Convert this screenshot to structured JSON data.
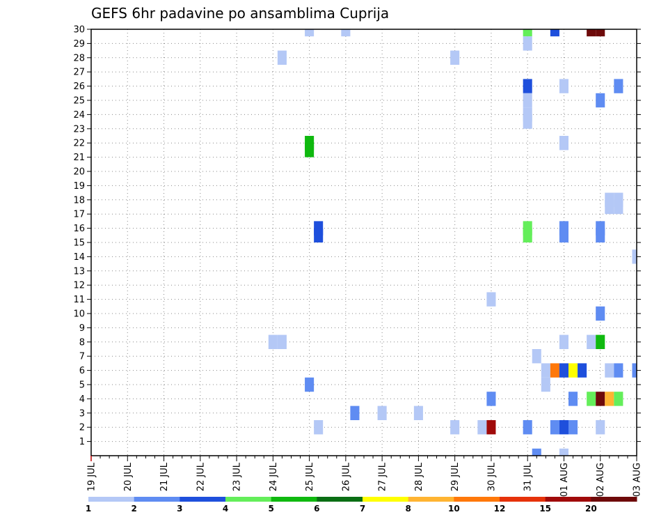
{
  "chart_data": {
    "type": "heatmap",
    "title": "GEFS 6hr padavine po ansamblima Cuprija",
    "xlabel": "",
    "ylabel": "",
    "x_ticks": [
      "19 JUL",
      "20 JUL",
      "21 JUL",
      "22 JUL",
      "23 JUL",
      "24 JUL",
      "25 JUL",
      "26 JUL",
      "27 JUL",
      "28 JUL",
      "29 JUL",
      "30 JUL",
      "31 JUL",
      "01 AUG",
      "02 AUG",
      "03 AUG"
    ],
    "y_ticks": [
      1,
      2,
      3,
      4,
      5,
      6,
      7,
      8,
      9,
      10,
      11,
      12,
      13,
      14,
      15,
      16,
      17,
      18,
      19,
      20,
      21,
      22,
      23,
      24,
      25,
      26,
      27,
      28,
      29,
      30
    ],
    "xlim": [
      0,
      15
    ],
    "ylim": [
      0,
      30
    ],
    "grid": true,
    "colorbar": {
      "labels": [
        "1",
        "2",
        "3",
        "4",
        "5",
        "6",
        "7",
        "8",
        "10",
        "12",
        "15",
        "20"
      ],
      "colors": [
        "#b4c8f6",
        "#5f8cf2",
        "#1e4fdc",
        "#64ee5a",
        "#0fb90f",
        "#0a6e14",
        "#ffff00",
        "#ffb432",
        "#ff780a",
        "#e6320a",
        "#a00a0a",
        "#6e0a0a"
      ]
    },
    "cells": [
      {
        "x": 6,
        "y": 30,
        "c": 0
      },
      {
        "x": 7,
        "y": 30,
        "c": 0
      },
      {
        "x": 12,
        "y": 30,
        "c": 3
      },
      {
        "x": 12.75,
        "y": 30,
        "c": 2
      },
      {
        "x": 13.75,
        "y": 30,
        "c": 11
      },
      {
        "x": 14,
        "y": 30,
        "c": 11
      },
      {
        "x": 12,
        "y": 29,
        "c": 0
      },
      {
        "x": 5.25,
        "y": 28,
        "c": 0
      },
      {
        "x": 10,
        "y": 28,
        "c": 0
      },
      {
        "x": 12,
        "y": 26,
        "c": 2
      },
      {
        "x": 13,
        "y": 26,
        "c": 0
      },
      {
        "x": 14.5,
        "y": 26,
        "c": 1
      },
      {
        "x": 12,
        "y": 25,
        "c": 0
      },
      {
        "x": 14,
        "y": 25,
        "c": 1
      },
      {
        "x": 12,
        "y": 24,
        "c": 0
      },
      {
        "x": 12,
        "y": 23.5,
        "c": 0
      },
      {
        "x": 6,
        "y": 22,
        "c": 4
      },
      {
        "x": 6,
        "y": 21.5,
        "c": 4
      },
      {
        "x": 13,
        "y": 22,
        "c": 0
      },
      {
        "x": 14.25,
        "y": 18,
        "c": 0
      },
      {
        "x": 14.5,
        "y": 18,
        "c": 0
      },
      {
        "x": 14.25,
        "y": 17.5,
        "c": 0
      },
      {
        "x": 14.5,
        "y": 17.5,
        "c": 0
      },
      {
        "x": 6.25,
        "y": 16,
        "c": 2
      },
      {
        "x": 6.25,
        "y": 15.5,
        "c": 2
      },
      {
        "x": 12,
        "y": 16,
        "c": 3
      },
      {
        "x": 12,
        "y": 15.5,
        "c": 3
      },
      {
        "x": 13,
        "y": 16,
        "c": 1
      },
      {
        "x": 13,
        "y": 15.5,
        "c": 1
      },
      {
        "x": 14,
        "y": 16,
        "c": 1
      },
      {
        "x": 14,
        "y": 15.5,
        "c": 1
      },
      {
        "x": 15,
        "y": 14,
        "c": 0
      },
      {
        "x": 11,
        "y": 11,
        "c": 0
      },
      {
        "x": 14,
        "y": 10,
        "c": 1
      },
      {
        "x": 5,
        "y": 8,
        "c": 0
      },
      {
        "x": 5.25,
        "y": 8,
        "c": 0
      },
      {
        "x": 13,
        "y": 8,
        "c": 0
      },
      {
        "x": 13.75,
        "y": 8,
        "c": 0
      },
      {
        "x": 14,
        "y": 8,
        "c": 4
      },
      {
        "x": 12.25,
        "y": 7,
        "c": 0
      },
      {
        "x": 12.5,
        "y": 6,
        "c": 0
      },
      {
        "x": 12.75,
        "y": 6,
        "c": 8
      },
      {
        "x": 13,
        "y": 6,
        "c": 2
      },
      {
        "x": 13.25,
        "y": 6,
        "c": 6
      },
      {
        "x": 13.5,
        "y": 6,
        "c": 2
      },
      {
        "x": 14.25,
        "y": 6,
        "c": 0
      },
      {
        "x": 14.5,
        "y": 6,
        "c": 1
      },
      {
        "x": 15,
        "y": 6,
        "c": 1
      },
      {
        "x": 6,
        "y": 5,
        "c": 1
      },
      {
        "x": 12.5,
        "y": 5,
        "c": 0
      },
      {
        "x": 11,
        "y": 4,
        "c": 1
      },
      {
        "x": 13.25,
        "y": 4,
        "c": 1
      },
      {
        "x": 13.75,
        "y": 4,
        "c": 3
      },
      {
        "x": 14,
        "y": 4,
        "c": 11
      },
      {
        "x": 14.25,
        "y": 4,
        "c": 7
      },
      {
        "x": 14.5,
        "y": 4,
        "c": 3
      },
      {
        "x": 7.25,
        "y": 3,
        "c": 1
      },
      {
        "x": 8,
        "y": 3,
        "c": 0
      },
      {
        "x": 9,
        "y": 3,
        "c": 0
      },
      {
        "x": 6.25,
        "y": 2,
        "c": 0
      },
      {
        "x": 10,
        "y": 2,
        "c": 0
      },
      {
        "x": 10.75,
        "y": 2,
        "c": 0
      },
      {
        "x": 11,
        "y": 2,
        "c": 10
      },
      {
        "x": 12,
        "y": 2,
        "c": 1
      },
      {
        "x": 12.75,
        "y": 2,
        "c": 1
      },
      {
        "x": 13,
        "y": 2,
        "c": 2
      },
      {
        "x": 13.25,
        "y": 2,
        "c": 1
      },
      {
        "x": 14,
        "y": 2,
        "c": 0
      },
      {
        "x": 12.25,
        "y": 0,
        "c": 1
      },
      {
        "x": 13,
        "y": 0,
        "c": 0
      }
    ]
  }
}
